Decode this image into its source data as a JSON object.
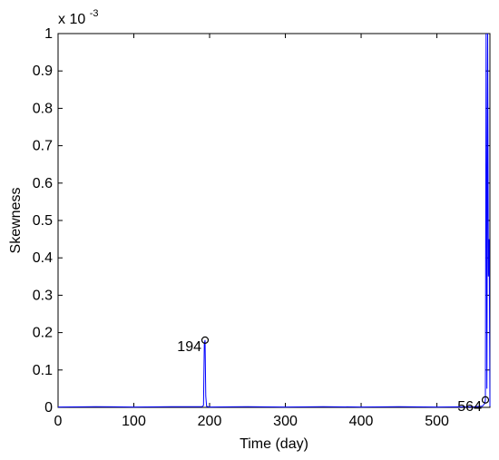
{
  "chart_data": {
    "type": "line",
    "title": "",
    "xlabel": "Time (day)",
    "ylabel": "Skewness",
    "exponent_label": "x 10",
    "exponent_power": "-3",
    "xlim": [
      0,
      570
    ],
    "ylim": [
      0,
      1
    ],
    "x_ticks": [
      0,
      100,
      200,
      300,
      400,
      500
    ],
    "x_tick_labels": [
      "0",
      "100",
      "200",
      "300",
      "400",
      "500"
    ],
    "y_ticks": [
      0,
      0.1,
      0.2,
      0.3,
      0.4,
      0.5,
      0.6,
      0.7,
      0.8,
      0.9,
      1
    ],
    "y_tick_labels": [
      "0",
      "0.1",
      "0.2",
      "0.3",
      "0.4",
      "0.5",
      "0.6",
      "0.7",
      "0.8",
      "0.9",
      "1"
    ],
    "grid": false,
    "series": [
      {
        "color": "#0000ff",
        "x": [
          0,
          50,
          100,
          150,
          190,
          192,
          193,
          194,
          195,
          196,
          200,
          250,
          300,
          350,
          400,
          450,
          500,
          550,
          560,
          563,
          564,
          565,
          566,
          567,
          568,
          569,
          570
        ],
        "values": [
          0.001,
          0.002,
          0.001,
          0.002,
          0.002,
          0.005,
          0.17,
          0.18,
          0.03,
          0.003,
          0.001,
          0.002,
          0.001,
          0.002,
          0.001,
          0.002,
          0.001,
          0.002,
          0.003,
          0.01,
          0.02,
          1.0,
          0.05,
          1.0,
          0.35,
          0.45,
          0.003
        ]
      }
    ],
    "annotations": [
      {
        "text": "194",
        "marker": "o",
        "x": 194,
        "y": 0.18
      },
      {
        "text": "564",
        "marker": "o",
        "x": 564,
        "y": 0.02
      }
    ]
  }
}
